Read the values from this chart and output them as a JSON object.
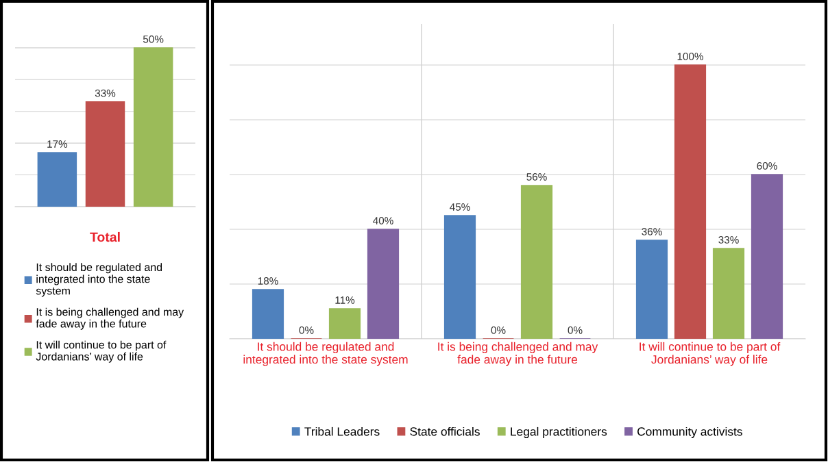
{
  "chart_data": [
    {
      "type": "bar",
      "title": "Total",
      "categories": [
        null
      ],
      "series": [
        {
          "name": "It should be regulated and integrated into the state system",
          "color": "#4f81bd",
          "values": [
            17
          ],
          "value_labels": [
            "17%"
          ]
        },
        {
          "name": "It is being challenged and may fade away in the future",
          "color": "#c0504d",
          "values": [
            33
          ],
          "value_labels": [
            "33%"
          ]
        },
        {
          "name": "It will continue to be part of Jordanians’ way of life",
          "color": "#9bbb59",
          "values": [
            50
          ],
          "value_labels": [
            "50%"
          ]
        }
      ],
      "grid": "y",
      "legend": "bottom",
      "tick_labels": false
    },
    {
      "type": "bar",
      "categories": [
        "It should be regulated and integrated into the state system",
        "It is being challenged and may fade away in the future",
        "It will continue to be part of Jordanians’ way of life"
      ],
      "series": [
        {
          "name": "Tribal Leaders",
          "color": "#4f81bd",
          "values": [
            18,
            45,
            36
          ],
          "value_labels": [
            "18%",
            "45%",
            "36%"
          ]
        },
        {
          "name": "State officials",
          "color": "#c0504d",
          "values": [
            0,
            0,
            100
          ],
          "value_labels": [
            "0%",
            "0%",
            "100%"
          ]
        },
        {
          "name": "Legal practitioners",
          "color": "#9bbb59",
          "values": [
            11,
            56,
            33
          ],
          "value_labels": [
            "11%",
            "56%",
            "33%"
          ]
        },
        {
          "name": "Community activists",
          "color": "#8064a2",
          "values": [
            40,
            0,
            60
          ],
          "value_labels": [
            "40%",
            "0%",
            "60%"
          ]
        }
      ],
      "grid": true,
      "legend": "bottom",
      "tick_labels": "x"
    }
  ]
}
